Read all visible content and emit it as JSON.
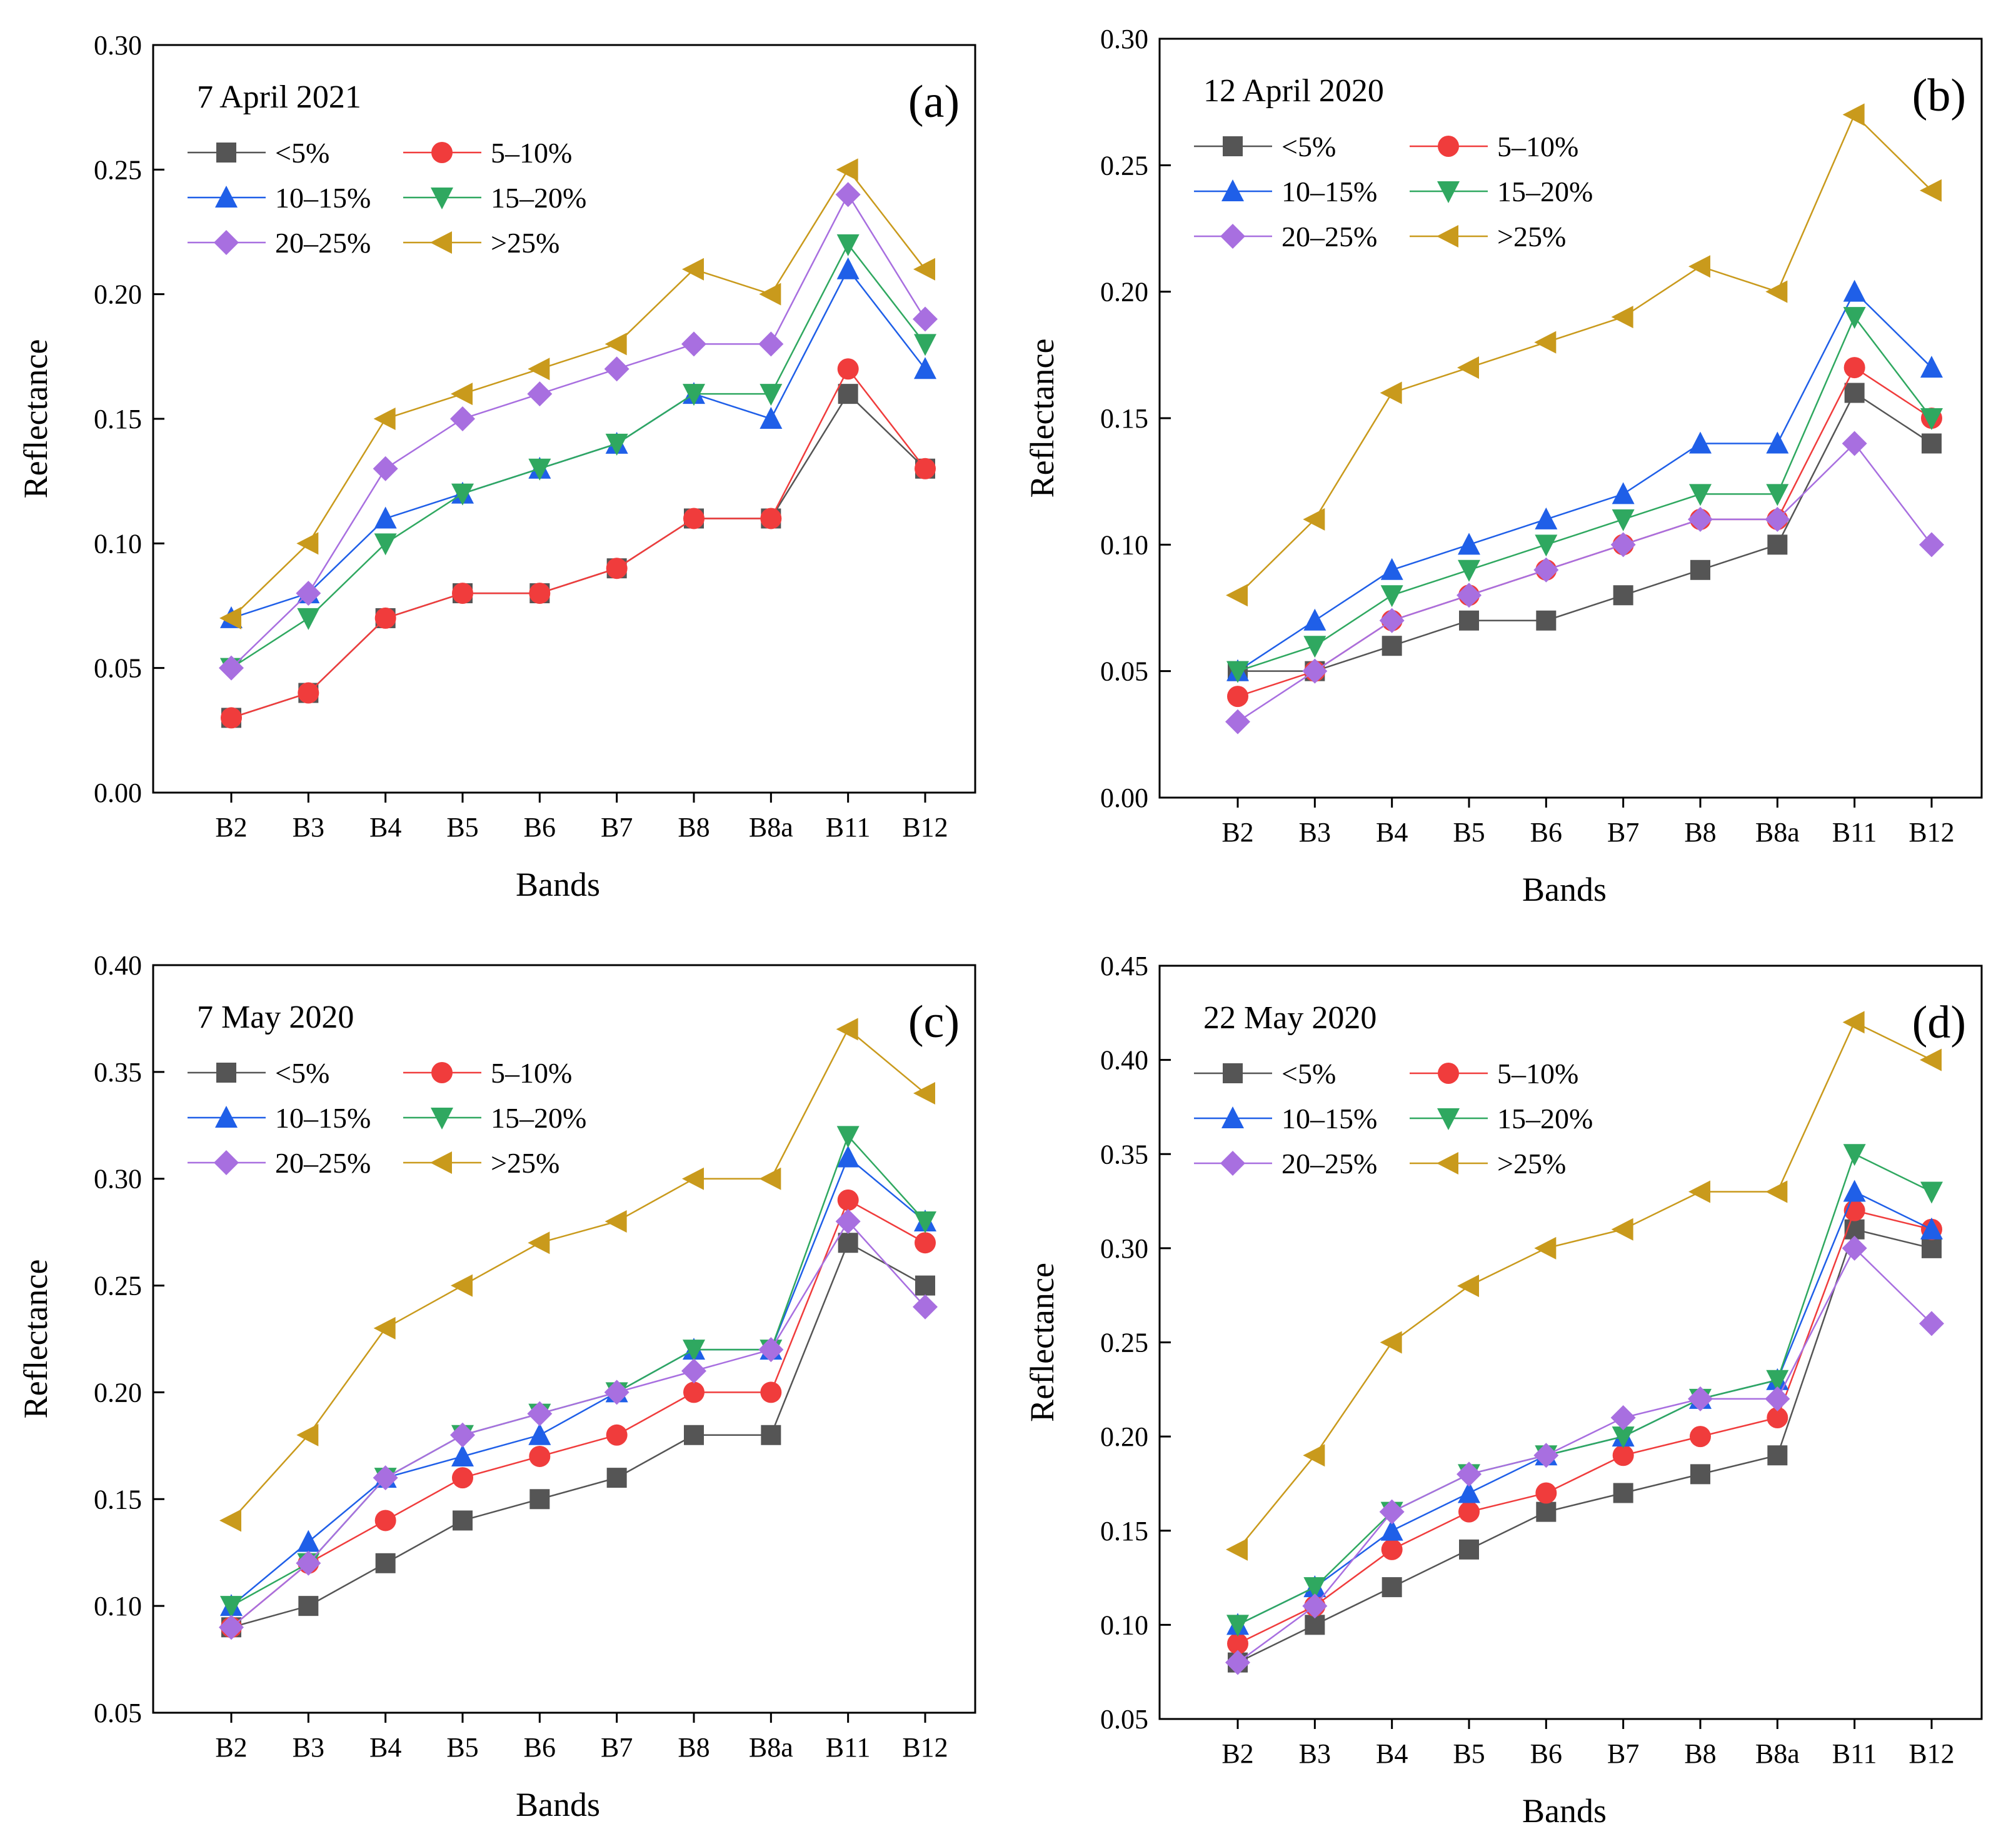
{
  "figure": {
    "legend_placement": "top-left inside each panel, two columns",
    "series_styles": [
      {
        "name": "<5%",
        "color": "#555555",
        "marker": "square"
      },
      {
        "name": "5–10%",
        "color": "#f03c3c",
        "marker": "circle"
      },
      {
        "name": "10–15%",
        "color": "#1f5fe8",
        "marker": "triangle-up"
      },
      {
        "name": "15–20%",
        "color": "#2fa860",
        "marker": "triangle-down"
      },
      {
        "name": "20–25%",
        "color": "#a86fe0",
        "marker": "diamond"
      },
      {
        "name": ">25%",
        "color": "#c99a1c",
        "marker": "triangle-left"
      }
    ]
  },
  "chart_data": [
    {
      "type": "line",
      "panel_label": "(a)",
      "date": "7 April 2021",
      "xlabel": "Bands",
      "ylabel": "Reflectance",
      "categories": [
        "B2",
        "B3",
        "B4",
        "B5",
        "B6",
        "B7",
        "B8",
        "B8a",
        "B11",
        "B12"
      ],
      "ylim": [
        0.0,
        0.3
      ],
      "yticks": [
        "0.00",
        "0.05",
        "0.10",
        "0.15",
        "0.20",
        "0.25",
        "0.30"
      ],
      "series": [
        {
          "name": "<5%",
          "values": [
            0.03,
            0.04,
            0.07,
            0.08,
            0.08,
            0.09,
            0.11,
            0.11,
            0.16,
            0.13
          ]
        },
        {
          "name": "5–10%",
          "values": [
            0.03,
            0.04,
            0.07,
            0.08,
            0.08,
            0.09,
            0.11,
            0.11,
            0.17,
            0.13
          ]
        },
        {
          "name": "10–15%",
          "values": [
            0.07,
            0.08,
            0.11,
            0.12,
            0.13,
            0.14,
            0.16,
            0.15,
            0.21,
            0.17
          ]
        },
        {
          "name": "15–20%",
          "values": [
            0.05,
            0.07,
            0.1,
            0.12,
            0.13,
            0.14,
            0.16,
            0.16,
            0.22,
            0.18
          ]
        },
        {
          "name": "20–25%",
          "values": [
            0.05,
            0.08,
            0.13,
            0.15,
            0.16,
            0.17,
            0.18,
            0.18,
            0.24,
            0.19
          ]
        },
        {
          "name": ">25%",
          "values": [
            0.07,
            0.1,
            0.15,
            0.16,
            0.17,
            0.18,
            0.21,
            0.2,
            0.25,
            0.21
          ]
        }
      ]
    },
    {
      "type": "line",
      "panel_label": "(b)",
      "date": "12 April 2020",
      "xlabel": "Bands",
      "ylabel": "Reflectance",
      "categories": [
        "B2",
        "B3",
        "B4",
        "B5",
        "B6",
        "B7",
        "B8",
        "B8a",
        "B11",
        "B12"
      ],
      "ylim": [
        0.0,
        0.3
      ],
      "yticks": [
        "0.00",
        "0.05",
        "0.10",
        "0.15",
        "0.20",
        "0.25",
        "0.30"
      ],
      "series": [
        {
          "name": "<5%",
          "values": [
            0.05,
            0.05,
            0.06,
            0.07,
            0.07,
            0.08,
            0.09,
            0.1,
            0.16,
            0.14
          ]
        },
        {
          "name": "5–10%",
          "values": [
            0.04,
            0.05,
            0.07,
            0.08,
            0.09,
            0.1,
            0.11,
            0.11,
            0.17,
            0.15
          ]
        },
        {
          "name": "10–15%",
          "values": [
            0.05,
            0.07,
            0.09,
            0.1,
            0.11,
            0.12,
            0.14,
            0.14,
            0.2,
            0.17
          ]
        },
        {
          "name": "15–20%",
          "values": [
            0.05,
            0.06,
            0.08,
            0.09,
            0.1,
            0.11,
            0.12,
            0.12,
            0.19,
            0.15
          ]
        },
        {
          "name": "20–25%",
          "values": [
            0.03,
            0.05,
            0.07,
            0.08,
            0.09,
            0.1,
            0.11,
            0.11,
            0.14,
            0.1
          ]
        },
        {
          "name": ">25%",
          "values": [
            0.08,
            0.11,
            0.16,
            0.17,
            0.18,
            0.19,
            0.21,
            0.2,
            0.27,
            0.24
          ]
        }
      ]
    },
    {
      "type": "line",
      "panel_label": "(c)",
      "date": "7 May 2020",
      "xlabel": "Bands",
      "ylabel": "Reflectance",
      "categories": [
        "B2",
        "B3",
        "B4",
        "B5",
        "B6",
        "B7",
        "B8",
        "B8a",
        "B11",
        "B12"
      ],
      "ylim": [
        0.05,
        0.4
      ],
      "yticks": [
        "0.05",
        "0.10",
        "0.15",
        "0.20",
        "0.25",
        "0.30",
        "0.35",
        "0.40"
      ],
      "series": [
        {
          "name": "<5%",
          "values": [
            0.09,
            0.1,
            0.12,
            0.14,
            0.15,
            0.16,
            0.18,
            0.18,
            0.27,
            0.25
          ]
        },
        {
          "name": "5–10%",
          "values": [
            0.09,
            0.12,
            0.14,
            0.16,
            0.17,
            0.18,
            0.2,
            0.2,
            0.29,
            0.27
          ]
        },
        {
          "name": "10–15%",
          "values": [
            0.1,
            0.13,
            0.16,
            0.17,
            0.18,
            0.2,
            0.22,
            0.22,
            0.31,
            0.28
          ]
        },
        {
          "name": "15–20%",
          "values": [
            0.1,
            0.12,
            0.16,
            0.18,
            0.19,
            0.2,
            0.22,
            0.22,
            0.32,
            0.28
          ]
        },
        {
          "name": "20–25%",
          "values": [
            0.09,
            0.12,
            0.16,
            0.18,
            0.19,
            0.2,
            0.21,
            0.22,
            0.28,
            0.24
          ]
        },
        {
          "name": ">25%",
          "values": [
            0.14,
            0.18,
            0.23,
            0.25,
            0.27,
            0.28,
            0.3,
            0.3,
            0.37,
            0.34
          ]
        }
      ]
    },
    {
      "type": "line",
      "panel_label": "(d)",
      "date": "22 May 2020",
      "xlabel": "Bands",
      "ylabel": "Reflectance",
      "categories": [
        "B2",
        "B3",
        "B4",
        "B5",
        "B6",
        "B7",
        "B8",
        "B8a",
        "B11",
        "B12"
      ],
      "ylim": [
        0.05,
        0.45
      ],
      "yticks": [
        "0.05",
        "0.10",
        "0.15",
        "0.20",
        "0.25",
        "0.30",
        "0.35",
        "0.40",
        "0.45"
      ],
      "series": [
        {
          "name": "<5%",
          "values": [
            0.08,
            0.1,
            0.12,
            0.14,
            0.16,
            0.17,
            0.18,
            0.19,
            0.31,
            0.3
          ]
        },
        {
          "name": "5–10%",
          "values": [
            0.09,
            0.11,
            0.14,
            0.16,
            0.17,
            0.19,
            0.2,
            0.21,
            0.32,
            0.31
          ]
        },
        {
          "name": "10–15%",
          "values": [
            0.1,
            0.12,
            0.15,
            0.17,
            0.19,
            0.2,
            0.22,
            0.23,
            0.33,
            0.31
          ]
        },
        {
          "name": "15–20%",
          "values": [
            0.1,
            0.12,
            0.16,
            0.18,
            0.19,
            0.2,
            0.22,
            0.23,
            0.35,
            0.33
          ]
        },
        {
          "name": "20–25%",
          "values": [
            0.08,
            0.11,
            0.16,
            0.18,
            0.19,
            0.21,
            0.22,
            0.22,
            0.3,
            0.26
          ]
        },
        {
          "name": ">25%",
          "values": [
            0.14,
            0.19,
            0.25,
            0.28,
            0.3,
            0.31,
            0.33,
            0.33,
            0.42,
            0.4
          ]
        }
      ]
    }
  ]
}
